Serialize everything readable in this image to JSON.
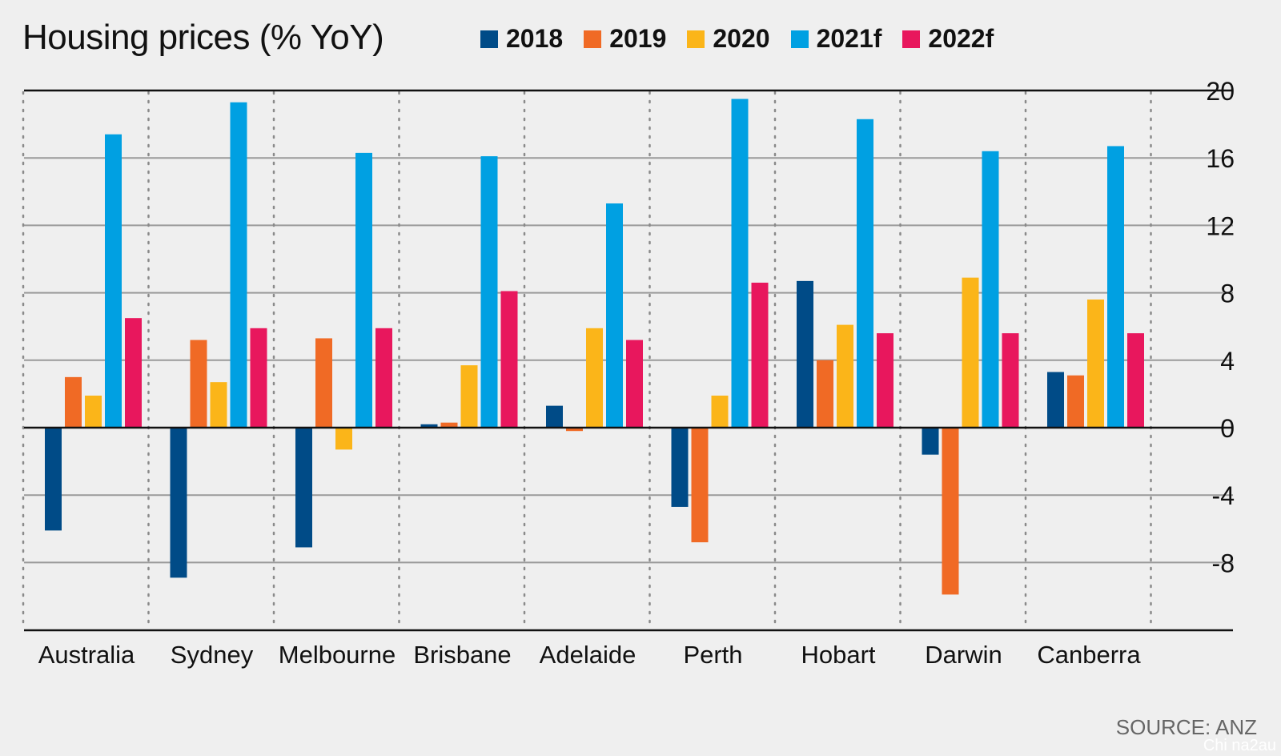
{
  "chart_data": {
    "type": "bar",
    "title": "Housing prices (% YoY)",
    "categories": [
      "Australia",
      "Sydney",
      "Melbourne",
      "Brisbane",
      "Adelaide",
      "Perth",
      "Hobart",
      "Darwin",
      "Canberra"
    ],
    "series": [
      {
        "name": "2018",
        "color": "#004b87",
        "values": [
          -6.1,
          -8.9,
          -7.1,
          0.2,
          1.3,
          -4.7,
          8.7,
          -1.6,
          3.3
        ]
      },
      {
        "name": "2019",
        "color": "#f06a25",
        "values": [
          3.0,
          5.2,
          5.3,
          0.3,
          -0.2,
          -6.8,
          4.0,
          -9.9,
          3.1
        ]
      },
      {
        "name": "2020",
        "color": "#fbb519",
        "values": [
          1.9,
          2.7,
          -1.3,
          3.7,
          5.9,
          1.9,
          6.1,
          8.9,
          7.6
        ]
      },
      {
        "name": "2021f",
        "color": "#00a0e2",
        "values": [
          17.4,
          19.3,
          16.3,
          16.1,
          13.3,
          19.5,
          18.3,
          16.4,
          16.7
        ]
      },
      {
        "name": "2022f",
        "color": "#e8175d",
        "values": [
          6.5,
          5.9,
          5.9,
          8.1,
          5.2,
          8.6,
          5.6,
          5.6,
          5.6
        ]
      }
    ],
    "ylim": [
      -12,
      20
    ],
    "yticks": [
      "20",
      "16",
      "12",
      "8",
      "4",
      "0",
      "-4",
      "-8"
    ],
    "ytick_values": [
      20,
      16,
      12,
      8,
      4,
      0,
      -4,
      -8
    ],
    "grid": true,
    "legend_position": "top",
    "source": "SOURCE: ANZ"
  },
  "watermark": "Chi na2au"
}
